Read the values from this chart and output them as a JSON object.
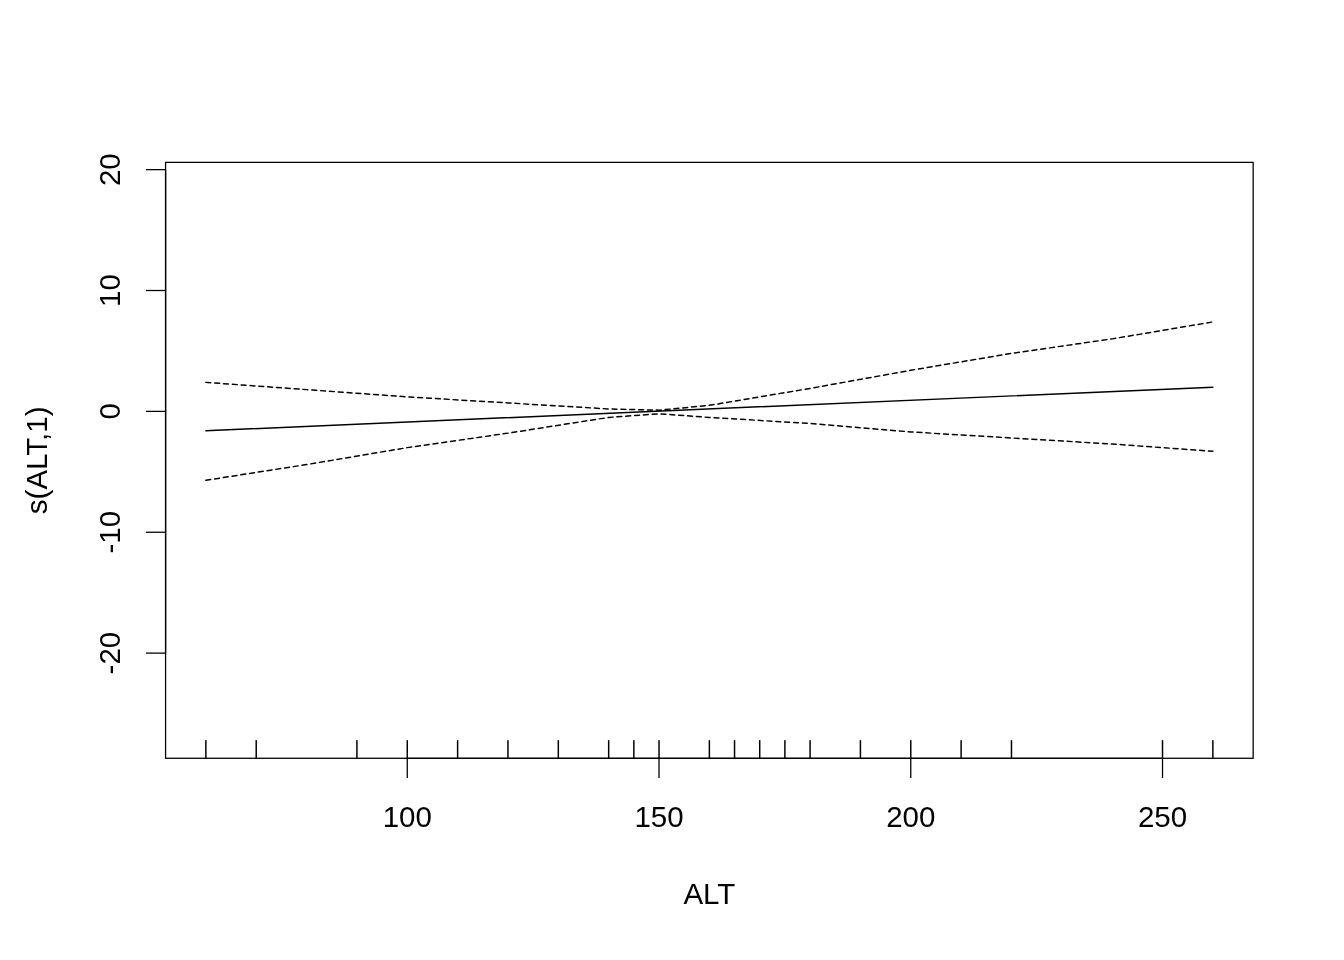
{
  "chart_data": {
    "type": "line",
    "xlabel": "ALT",
    "ylabel": "s(ALT,1)",
    "xlim": [
      52,
      268
    ],
    "ylim": [
      -28.7,
      20.6
    ],
    "xticks": [
      100,
      150,
      200,
      250
    ],
    "yticks": [
      -20,
      -10,
      0,
      10,
      20
    ],
    "grid": false,
    "series": [
      {
        "color": "#000000",
        "line_style": "solid",
        "x": [
          60,
          260
        ],
        "values": [
          -1.6,
          2.0
        ]
      },
      {
        "color": "#000000",
        "line_style": "dashed",
        "x": [
          60,
          80,
          100,
          120,
          140,
          150,
          160,
          180,
          200,
          220,
          240,
          260
        ],
        "values": [
          2.4,
          1.8,
          1.2,
          0.7,
          0.2,
          0.1,
          0.5,
          1.9,
          3.4,
          4.8,
          6.0,
          7.4
        ]
      },
      {
        "color": "#000000",
        "line_style": "dashed",
        "x": [
          60,
          80,
          100,
          120,
          140,
          150,
          160,
          180,
          200,
          220,
          240,
          260
        ],
        "values": [
          -5.7,
          -4.4,
          -3.0,
          -1.8,
          -0.5,
          -0.2,
          -0.5,
          -1.0,
          -1.7,
          -2.2,
          -2.7,
          -3.3
        ]
      },
      {
        "type": "bar",
        "color": "#000000",
        "x": [
          60,
          70,
          90,
          100,
          110,
          120,
          130,
          140,
          145,
          150,
          160,
          165,
          170,
          175,
          180,
          190,
          200,
          210,
          220,
          250,
          260
        ],
        "values": [
          1.5,
          1.5,
          1.5,
          1.5,
          1.5,
          1.5,
          1.5,
          1.5,
          1.5,
          1.5,
          1.5,
          1.5,
          1.5,
          1.5,
          1.5,
          1.5,
          1.5,
          1.5,
          1.5,
          1.5,
          1.5
        ],
        "base": [
          -28.7,
          -28.7,
          -28.7,
          -28.7,
          -28.7,
          -28.7,
          -28.7,
          -28.7,
          -28.7,
          -28.7,
          -28.7,
          -28.7,
          -28.7,
          -28.7,
          -28.7,
          -28.7,
          -28.7,
          -28.7,
          -28.7,
          -28.7,
          -28.7
        ]
      }
    ]
  }
}
